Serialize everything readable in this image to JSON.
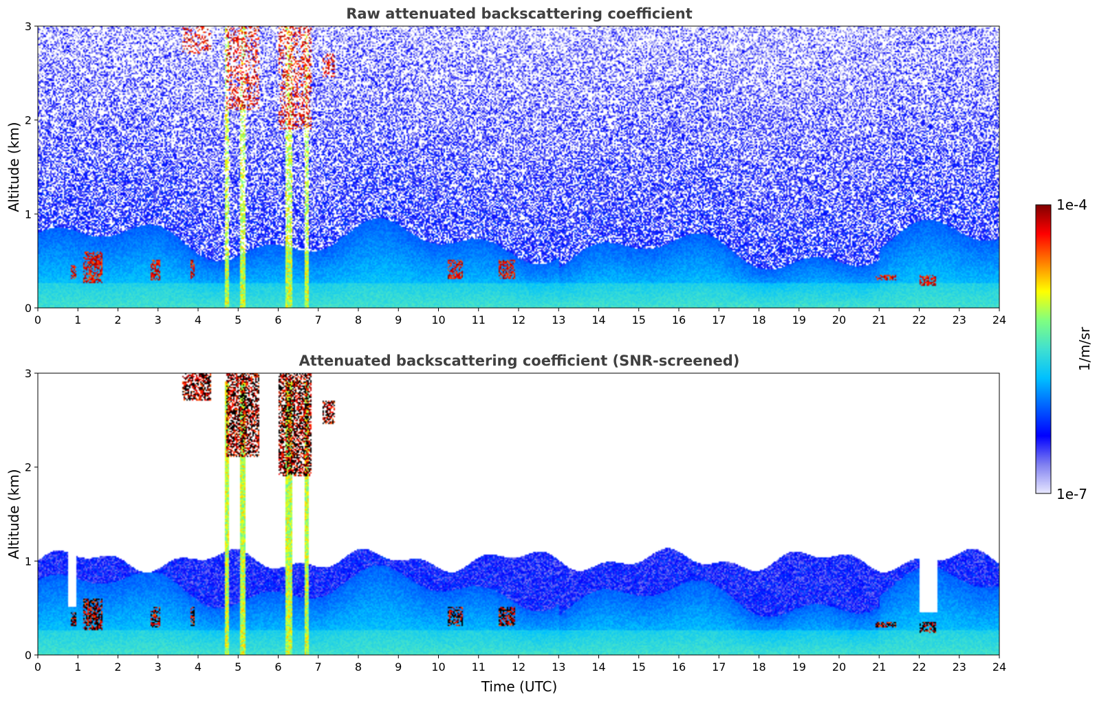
{
  "chart_data": [
    {
      "type": "heatmap",
      "title": "Raw attenuated backscattering coefficient",
      "xlabel": "",
      "ylabel": "Altitude (km)",
      "xlim": [
        0,
        24
      ],
      "ylim": [
        0,
        3
      ],
      "xticks": [
        "0",
        "1",
        "2",
        "3",
        "4",
        "5",
        "6",
        "7",
        "8",
        "9",
        "10",
        "11",
        "12",
        "13",
        "14",
        "15",
        "16",
        "17",
        "18",
        "19",
        "20",
        "21",
        "22",
        "23",
        "24"
      ],
      "yticks": [
        "0",
        "1",
        "2",
        "3"
      ],
      "screened": false
    },
    {
      "type": "heatmap",
      "title": "Attenuated backscattering coefficient (SNR-screened)",
      "xlabel": "Time (UTC)",
      "ylabel": "Altitude (km)",
      "xlim": [
        0,
        24
      ],
      "ylim": [
        0,
        3
      ],
      "xticks": [
        "0",
        "1",
        "2",
        "3",
        "4",
        "5",
        "6",
        "7",
        "8",
        "9",
        "10",
        "11",
        "12",
        "13",
        "14",
        "15",
        "16",
        "17",
        "18",
        "19",
        "20",
        "21",
        "22",
        "23",
        "24"
      ],
      "yticks": [
        "0",
        "1",
        "2",
        "3"
      ],
      "screened": true
    }
  ],
  "colorbar": {
    "label": "1/m/sr",
    "min_label": "1e-7",
    "max_label": "1e-4",
    "scale": "log",
    "colors": [
      "#e8e8ff",
      "#8080f0",
      "#0000ff",
      "#0060ff",
      "#00c0ff",
      "#40e0d0",
      "#80ff80",
      "#ffff00",
      "#ff8000",
      "#ff0000",
      "#800000"
    ]
  }
}
